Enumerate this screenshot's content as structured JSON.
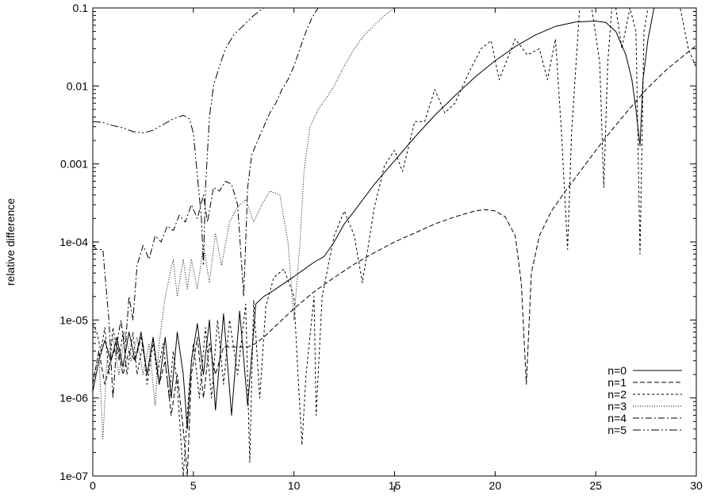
{
  "chart_data": {
    "type": "line",
    "title": "",
    "xlabel": "r",
    "ylabel": "relative difference",
    "xlim": [
      0,
      30
    ],
    "ylim": [
      1e-07,
      0.1
    ],
    "y_scale": "log",
    "grid": false,
    "legend_position": "bottom-right",
    "x_ticks": [
      "0",
      "5",
      "10",
      "15",
      "20",
      "25",
      "30"
    ],
    "y_ticks": [
      "1e-07",
      "1e-06",
      "1e-05",
      "1e-04",
      "0.001",
      "0.01",
      "0.1"
    ],
    "series": [
      {
        "name": "n=0",
        "dash": "",
        "x": [
          0,
          0.3,
          0.6,
          0.9,
          1.2,
          1.5,
          1.8,
          2.1,
          2.4,
          2.7,
          3.0,
          3.3,
          3.6,
          3.9,
          4.2,
          4.5,
          4.7,
          4.9,
          5.2,
          5.5,
          5.8,
          6.1,
          6.5,
          6.9,
          7.3,
          7.7,
          8.1,
          8.5,
          9.0,
          10,
          11,
          11.5,
          12,
          12.5,
          13,
          14,
          15,
          16,
          17,
          18,
          19,
          20,
          21,
          22,
          23,
          24,
          25,
          25.5,
          26,
          26.5,
          26.8,
          27.0,
          27.2,
          27.35,
          27.6,
          27.9,
          28.2,
          29,
          30
        ],
        "y": [
          1.2e-06,
          3e-06,
          5.5e-06,
          3e-06,
          6e-06,
          2.5e-06,
          7e-06,
          3e-06,
          7e-06,
          2e-06,
          6e-06,
          1.5e-06,
          6e-06,
          1e-06,
          7e-06,
          2e-06,
          4e-07,
          3e-06,
          9e-06,
          2e-06,
          1e-05,
          7e-07,
          1.2e-05,
          6e-07,
          1.3e-05,
          8e-07,
          1.6e-05,
          2e-05,
          2.4e-05,
          3.6e-05,
          5.5e-05,
          6.5e-05,
          0.0001,
          0.00017,
          0.00025,
          0.00055,
          0.0011,
          0.0022,
          0.0042,
          0.0075,
          0.013,
          0.021,
          0.032,
          0.045,
          0.058,
          0.066,
          0.068,
          0.065,
          0.05,
          0.025,
          0.012,
          0.005,
          0.0017,
          0.012,
          0.04,
          0.1,
          0.1,
          0.1,
          0.1
        ]
      },
      {
        "name": "n=1",
        "dash": "6,3",
        "x": [
          0,
          0.3,
          0.6,
          0.9,
          1.2,
          1.5,
          1.8,
          2.1,
          2.4,
          2.7,
          3.0,
          3.3,
          3.6,
          3.9,
          4.2,
          4.5,
          4.7,
          4.9,
          5.2,
          5.5,
          5.8,
          6.1,
          6.5,
          6.9,
          7.3,
          7.7,
          8.1,
          8.5,
          9,
          10,
          11,
          12,
          13,
          14,
          15,
          16,
          17,
          18,
          19,
          19.5,
          20,
          20.5,
          21,
          21.3,
          21.55,
          21.8,
          22.2,
          22.8,
          23.5,
          24.5,
          25.5,
          26.5,
          27.5,
          28.5,
          29.5,
          30
        ],
        "y": [
          1.5e-06,
          4e-06,
          1.5e-06,
          3e-06,
          5e-06,
          2e-06,
          4e-06,
          3e-06,
          6e-06,
          2e-06,
          6e-06,
          1.5e-06,
          3e-06,
          6e-07,
          2e-06,
          4e-07,
          1e-07,
          2e-06,
          6e-06,
          1e-06,
          5e-06,
          2e-06,
          4.5e-06,
          4.5e-06,
          4.5e-06,
          4.5e-06,
          5e-06,
          6e-06,
          8e-06,
          1.4e-05,
          2.3e-05,
          3.5e-05,
          5.2e-05,
          7.3e-05,
          0.0001,
          0.00013,
          0.00017,
          0.00021,
          0.00025,
          0.00026,
          0.00025,
          0.00021,
          0.00012,
          3e-05,
          1.5e-06,
          4e-05,
          0.00012,
          0.00025,
          0.00045,
          0.001,
          0.0022,
          0.0045,
          0.009,
          0.016,
          0.026,
          0.033
        ]
      },
      {
        "name": "n=2",
        "dash": "3,3",
        "x": [
          0,
          0.2,
          0.4,
          0.6,
          0.8,
          1.0,
          1.3,
          1.5,
          1.7,
          2.0,
          2.2,
          2.5,
          2.7,
          3.0,
          3.2,
          3.5,
          3.8,
          4.0,
          4.2,
          4.5,
          4.8,
          5.0,
          5.3,
          5.6,
          5.9,
          6.2,
          6.5,
          6.8,
          7.2,
          7.6,
          7.8,
          8.0,
          8.3,
          8.6,
          9,
          9.5,
          10,
          10.2,
          10.4,
          10.6,
          11,
          11.1,
          11.4,
          12,
          12.5,
          13,
          13.4,
          14,
          14.5,
          15,
          15.4,
          16,
          16.5,
          17,
          17.5,
          18,
          18.7,
          19.3,
          19.8,
          20.2,
          21,
          21.6,
          22.2,
          22.6,
          23.0,
          23.3,
          23.6,
          23.8,
          24.2,
          24.8,
          25.2,
          25.4,
          25.6,
          25.8,
          26,
          26.3,
          26.7,
          27.0,
          27.2,
          27.4,
          27.6,
          28.0,
          28.6,
          29.2,
          29.6,
          30
        ],
        "y": [
          9e-06,
          7e-06,
          4e-06,
          8e-06,
          2e-06,
          8e-06,
          3e-06,
          7e-06,
          2e-06,
          7e-06,
          2e-06,
          5e-06,
          1.5e-06,
          5e-06,
          2e-06,
          5e-06,
          1e-06,
          4e-06,
          1.5e-06,
          1e-07,
          1.5e-06,
          5e-06,
          1e-06,
          8e-06,
          1e-06,
          1e-05,
          1.5e-06,
          1e-05,
          2e-06,
          1.6e-05,
          1.5e-07,
          1.8e-05,
          1e-06,
          1.5e-05,
          3.5e-05,
          4.5e-05,
          2e-05,
          2e-06,
          2.5e-07,
          2e-06,
          2e-05,
          6e-07,
          2e-05,
          0.00012,
          0.00025,
          0.00012,
          3e-05,
          0.00028,
          0.00095,
          0.0015,
          0.0008,
          0.0035,
          0.0035,
          0.009,
          0.0045,
          0.006,
          0.015,
          0.03,
          0.038,
          0.012,
          0.04,
          0.025,
          0.03,
          0.012,
          0.04,
          0.0025,
          8e-05,
          0.0025,
          0.1,
          0.1,
          0.02,
          0.0005,
          0.02,
          0.1,
          0.1,
          0.03,
          0.1,
          0.05,
          7e-05,
          0.05,
          0.1,
          0.1,
          0.1,
          0.1,
          0.03,
          0.017
        ]
      },
      {
        "name": "n=3",
        "dash": "1,2",
        "x": [
          0,
          0.3,
          0.5,
          0.7,
          1.0,
          1.3,
          1.6,
          1.9,
          2.2,
          2.5,
          2.8,
          3.1,
          3.3,
          3.6,
          4.0,
          4.2,
          4.5,
          4.7,
          4.9,
          5.2,
          5.5,
          5.8,
          6.1,
          6.4,
          6.8,
          7.2,
          7.6,
          8.0,
          8.4,
          8.8,
          9.3,
          9.7,
          10.0,
          10.3,
          10.5,
          10.8,
          11.2,
          11.6,
          12.0,
          12.5,
          13.0,
          13.5,
          14.0,
          14.5,
          15.0
        ],
        "y": [
          1.5e-06,
          4e-06,
          3e-07,
          3e-06,
          6e-06,
          2e-06,
          7e-06,
          3e-06,
          6e-06,
          2e-06,
          5e-06,
          8e-07,
          5e-06,
          2e-05,
          6e-05,
          2e-05,
          6e-05,
          2.5e-05,
          6e-05,
          2.5e-05,
          9e-05,
          3e-05,
          0.00013,
          5e-05,
          0.00018,
          0.00028,
          0.00035,
          0.00018,
          0.0003,
          0.00045,
          0.0004,
          0.0001,
          1e-05,
          0.0001,
          0.0008,
          0.003,
          0.005,
          0.007,
          0.01,
          0.018,
          0.03,
          0.045,
          0.06,
          0.08,
          0.1
        ]
      },
      {
        "name": "n=4",
        "dash": "8,3,2,3",
        "x": [
          0,
          0.2,
          0.5,
          0.8,
          1.0,
          1.2,
          1.4,
          1.6,
          1.8,
          2.0,
          2.2,
          2.5,
          2.8,
          3.1,
          3.4,
          3.7,
          4.0,
          4.3,
          4.6,
          4.9,
          5.2,
          5.5,
          5.7,
          6.0,
          6.3,
          6.6,
          6.9,
          7.2,
          7.5,
          7.7,
          7.9,
          8.2,
          8.5,
          8.8,
          9.1,
          9.4,
          9.7,
          10.0,
          10.3,
          10.6,
          10.9,
          11.2
        ],
        "y": [
          9e-05,
          8e-05,
          8e-05,
          1e-05,
          1e-06,
          5e-06,
          1e-05,
          4e-06,
          2e-05,
          1e-05,
          5e-05,
          9e-05,
          6e-05,
          0.00012,
          0.0001,
          0.00016,
          0.00014,
          0.00022,
          0.00018,
          0.0003,
          0.0002,
          0.0004,
          0.00018,
          0.0005,
          0.00045,
          0.0006,
          0.00055,
          0.0003,
          2e-05,
          0.0005,
          0.0013,
          0.002,
          0.003,
          0.0045,
          0.006,
          0.009,
          0.012,
          0.018,
          0.03,
          0.05,
          0.075,
          0.1
        ]
      },
      {
        "name": "n=5",
        "dash": "10,3,2,3,2,3",
        "x": [
          0,
          0.5,
          1.0,
          1.5,
          2.0,
          2.5,
          3.0,
          3.5,
          4.0,
          4.5,
          4.8,
          5.0,
          5.2,
          5.4,
          5.5,
          5.6,
          5.8,
          6.0,
          6.3,
          6.6,
          7.0,
          7.5,
          8.0,
          8.5
        ],
        "y": [
          0.0035,
          0.0034,
          0.0031,
          0.0029,
          0.0026,
          0.0025,
          0.0027,
          0.0032,
          0.0038,
          0.0042,
          0.0038,
          0.0025,
          0.0007,
          0.0002,
          5e-05,
          0.0005,
          0.004,
          0.01,
          0.018,
          0.03,
          0.045,
          0.06,
          0.08,
          0.1
        ]
      }
    ]
  }
}
